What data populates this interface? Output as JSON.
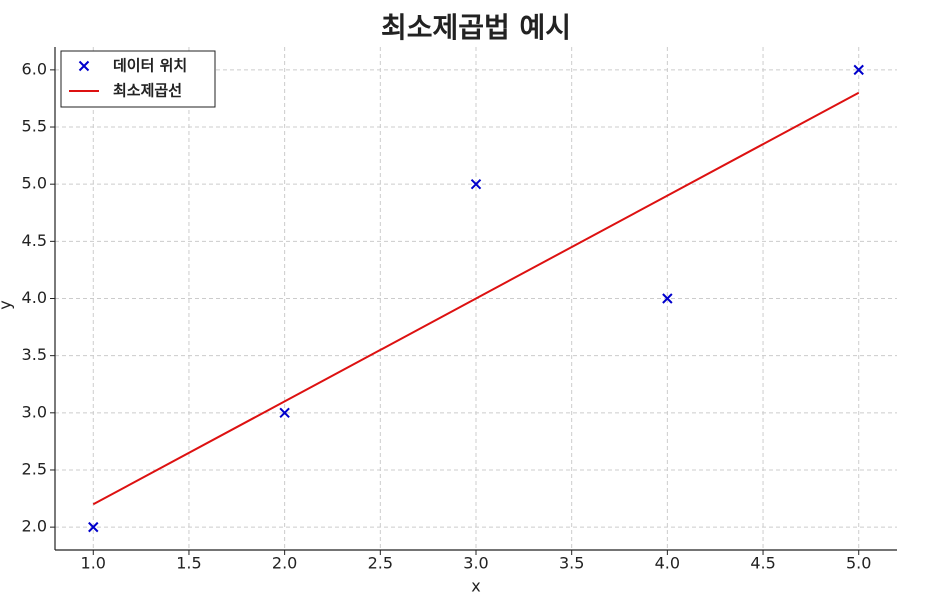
{
  "chart_data": {
    "type": "scatter",
    "title": "최소제곱법 예시",
    "x_label": "x",
    "y_label": "y",
    "series": [
      {
        "name": "데이터 위치",
        "type": "scatter",
        "marker": "x",
        "color": "#0000cc",
        "x": [
          1,
          2,
          3,
          4,
          5
        ],
        "values": [
          2,
          3,
          5,
          4,
          6
        ]
      },
      {
        "name": "최소제곱선",
        "type": "line",
        "color": "#dd1111",
        "x": [
          1,
          2,
          3,
          4,
          5
        ],
        "values": [
          2.2,
          3.1,
          4.0,
          4.9,
          5.8
        ]
      }
    ],
    "xlim": [
      0.8,
      5.2
    ],
    "xticks": [
      {
        "value": 1,
        "label": "1.0"
      },
      1.5,
      {
        "value": 2,
        "label": "2.0"
      },
      2.5,
      {
        "value": 3,
        "label": "3.0"
      },
      3.5,
      {
        "value": 4,
        "label": "4.0"
      },
      4.5,
      {
        "value": 5,
        "label": "5.0"
      }
    ],
    "ylim": [
      1.8,
      6.2
    ],
    "yticks": [
      {
        "value": 2,
        "label": "2.0"
      },
      2.5,
      {
        "value": 3,
        "label": "3.0"
      },
      3.5,
      {
        "value": 4,
        "label": "4.0"
      },
      4.5,
      {
        "value": 5,
        "label": "5.0"
      },
      5.5,
      {
        "value": 6,
        "label": "6.0"
      }
    ],
    "grid": true,
    "legend": "upper-left"
  }
}
